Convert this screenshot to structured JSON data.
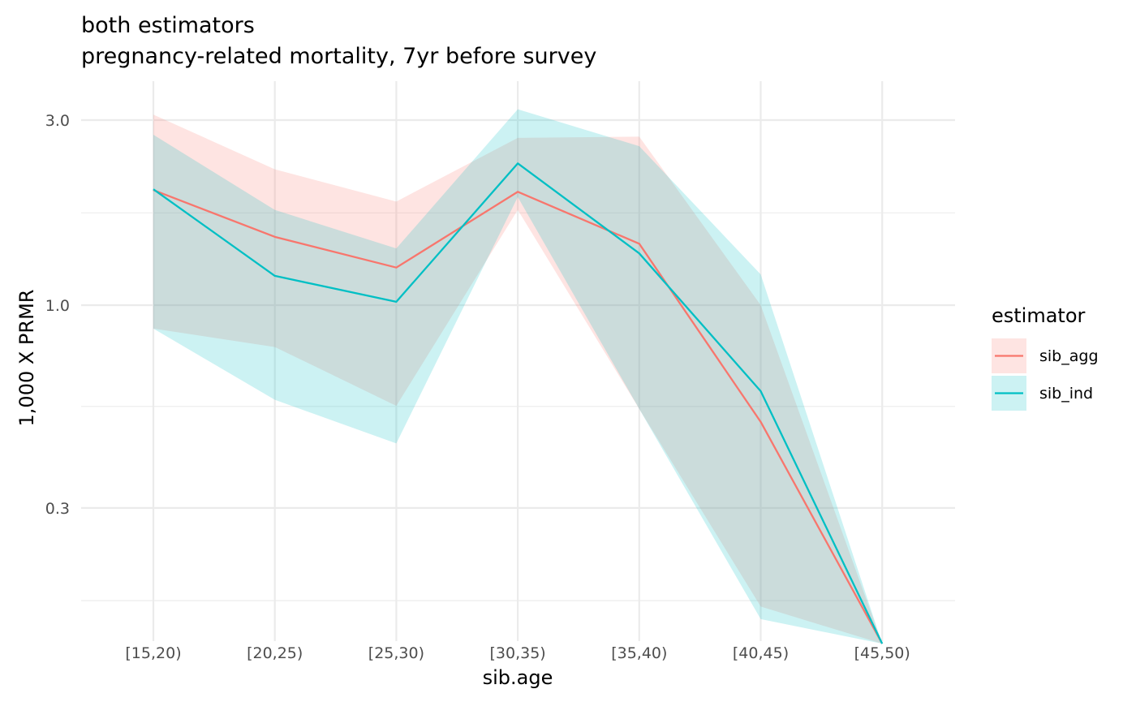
{
  "chart_data": {
    "type": "line",
    "title": "both estimators",
    "subtitle": "pregnancy-related mortality, 7yr before survey",
    "xlabel": "sib.age",
    "ylabel": "1,000 X PRMR",
    "yscale": "log10",
    "ylim": [
      0.128,
      3.35
    ],
    "yticks": [
      {
        "value": 3.0,
        "label": "3.0"
      },
      {
        "value": 1.0,
        "label": "1.0"
      },
      {
        "value": 0.3,
        "label": "0.3"
      }
    ],
    "yminor": [
      1.73,
      0.548,
      0.173
    ],
    "grid": true,
    "categories": [
      "[15,20)",
      "[20,25)",
      "[25,30)",
      "[30,35)",
      "[35,40)",
      "[40,45)",
      "[45,50)"
    ],
    "legend": {
      "title": "estimator",
      "position": "right"
    },
    "series": [
      {
        "name": "sib_agg",
        "color": "#F8766D",
        "fill": "#F8766D",
        "values": [
          1.98,
          1.5,
          1.25,
          1.96,
          1.44,
          0.5,
          0.134
        ],
        "lower": [
          0.87,
          0.78,
          0.55,
          1.76,
          0.54,
          0.167,
          0.134
        ],
        "upper": [
          3.1,
          2.24,
          1.85,
          2.7,
          2.72,
          1.0,
          0.134
        ]
      },
      {
        "name": "sib_ind",
        "color": "#00BFC4",
        "fill": "#00BFC4",
        "values": [
          1.99,
          1.19,
          1.02,
          2.32,
          1.36,
          0.6,
          0.134
        ],
        "lower": [
          0.87,
          0.57,
          0.44,
          1.9,
          0.54,
          0.155,
          0.134
        ],
        "upper": [
          2.75,
          1.76,
          1.4,
          3.2,
          2.57,
          1.2,
          0.134
        ]
      }
    ]
  }
}
